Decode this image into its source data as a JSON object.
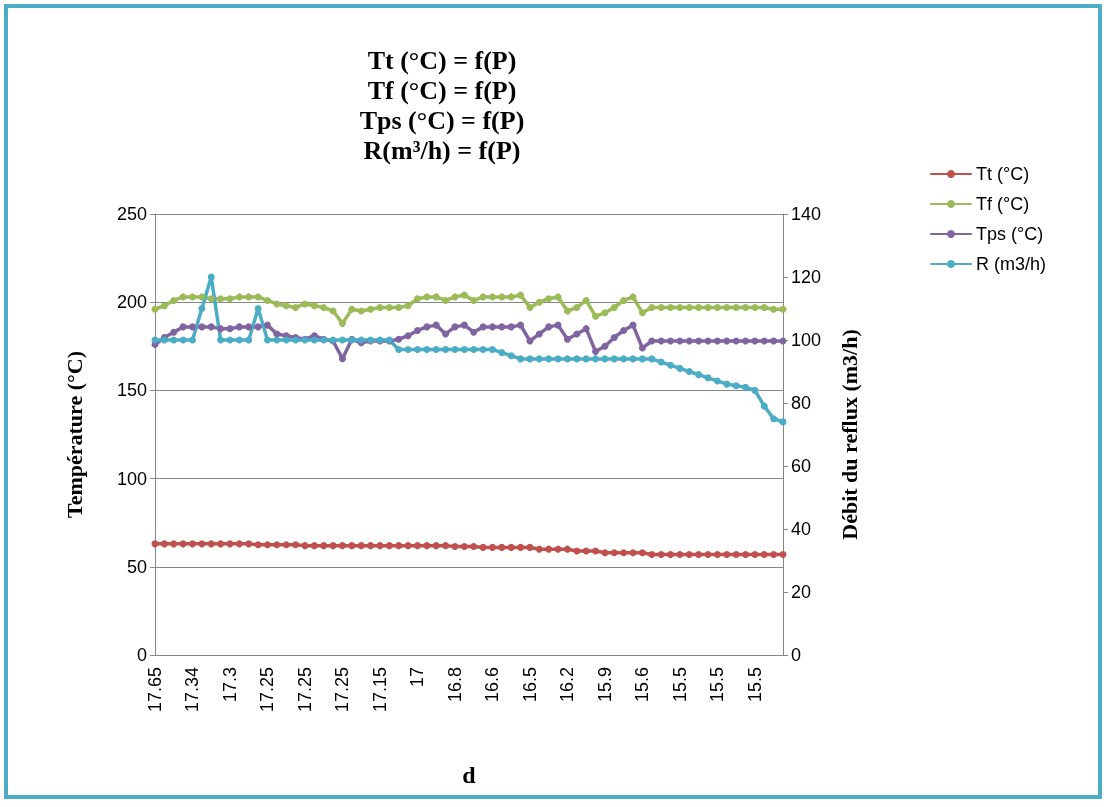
{
  "chart_data": {
    "type": "line",
    "title": "Tt (°C) = f(P)\nTf (°C) = f(P)\nTps (°C) = f(P)\nR(m³/h) = f(P)",
    "xlabel": "d",
    "ylabel": "Température (°C)",
    "y2label": "Débit du reflux (m3/h)",
    "categories": [
      "17.65",
      null,
      null,
      null,
      "17.34",
      null,
      null,
      null,
      "17.3",
      null,
      null,
      null,
      "17.25",
      null,
      null,
      null,
      "17.25",
      null,
      null,
      null,
      "17.25",
      null,
      null,
      null,
      "17.15",
      null,
      null,
      null,
      "17",
      null,
      null,
      null,
      "16.8",
      null,
      null,
      null,
      "16.6",
      null,
      null,
      null,
      "16.5",
      null,
      null,
      null,
      "16.2",
      null,
      null,
      null,
      "15.9",
      null,
      null,
      null,
      "15.6",
      null,
      null,
      null,
      "15.5",
      null,
      null,
      null,
      "15.5",
      null,
      null,
      null,
      "15.5",
      null,
      null,
      null
    ],
    "series": [
      {
        "name": "Tt (°C)",
        "color": "#c0504d",
        "values": [
          63,
          63,
          63,
          63,
          63,
          63,
          63,
          63,
          63,
          63,
          63,
          62.5,
          62.5,
          62.5,
          62.5,
          62.5,
          62,
          62,
          62,
          62,
          62,
          62,
          62,
          62,
          62,
          62,
          62,
          62,
          62,
          62,
          62,
          62,
          61.5,
          61.5,
          61.5,
          61,
          61,
          61,
          61,
          61,
          61,
          60,
          60,
          60,
          60,
          59,
          59,
          59,
          58,
          58,
          58,
          58,
          58,
          57,
          57,
          57,
          57,
          57,
          57,
          57,
          57,
          57,
          57,
          57,
          57,
          57,
          57,
          57
        ]
      },
      {
        "name": "Tf (°C)",
        "color": "#9bbb59",
        "values": [
          196,
          198,
          201,
          203,
          203,
          203,
          202,
          202,
          202,
          203,
          203,
          203,
          201,
          199,
          198,
          197,
          199,
          198,
          197,
          195,
          188,
          196,
          195,
          196,
          197,
          197,
          197,
          198,
          202,
          203,
          203,
          201,
          203,
          204,
          201,
          203,
          203,
          203,
          203,
          204,
          197,
          200,
          202,
          203,
          195,
          197,
          201,
          192,
          194,
          197,
          201,
          203,
          194,
          197,
          197,
          197,
          197,
          197,
          197,
          197,
          197,
          197,
          197,
          197,
          197,
          197,
          196,
          196
        ]
      },
      {
        "name": "Tps (°C)",
        "color": "#8064a2",
        "values": [
          176,
          180,
          183,
          186,
          186,
          186,
          186,
          185,
          185,
          186,
          186,
          186,
          187,
          182,
          181,
          180,
          179,
          181,
          179,
          178,
          168,
          179,
          177,
          178,
          178,
          178,
          179,
          181,
          184,
          186,
          187,
          182,
          186,
          187,
          183,
          186,
          186,
          186,
          186,
          187,
          178,
          182,
          186,
          187,
          179,
          182,
          185,
          172,
          175,
          180,
          184,
          187,
          174,
          178,
          178,
          178,
          178,
          178,
          178,
          178,
          178,
          178,
          178,
          178,
          178,
          178,
          178,
          178
        ]
      },
      {
        "name": "R (m3/h)",
        "color": "#4bacc6",
        "axis": "y2",
        "values": [
          100,
          100,
          100,
          100,
          100,
          110,
          120,
          100,
          100,
          100,
          100,
          110,
          100,
          100,
          100,
          100,
          100,
          100,
          100,
          100,
          100,
          100,
          100,
          100,
          100,
          100,
          97,
          97,
          97,
          97,
          97,
          97,
          97,
          97,
          97,
          97,
          97,
          96,
          95,
          94,
          94,
          94,
          94,
          94,
          94,
          94,
          94,
          94,
          94,
          94,
          94,
          94,
          94,
          94,
          93,
          92,
          91,
          90,
          89,
          88,
          87,
          86,
          85.5,
          85,
          84,
          79,
          75,
          74
        ]
      }
    ],
    "ylim": [
      0,
      250
    ],
    "yticks": [
      0,
      50,
      100,
      150,
      200,
      250
    ],
    "y2lim": [
      0,
      140
    ],
    "y2ticks": [
      0,
      20,
      40,
      60,
      80,
      100,
      120,
      140
    ],
    "grid": "y",
    "legend": "right",
    "marker": "circle",
    "line_style": "solid"
  }
}
